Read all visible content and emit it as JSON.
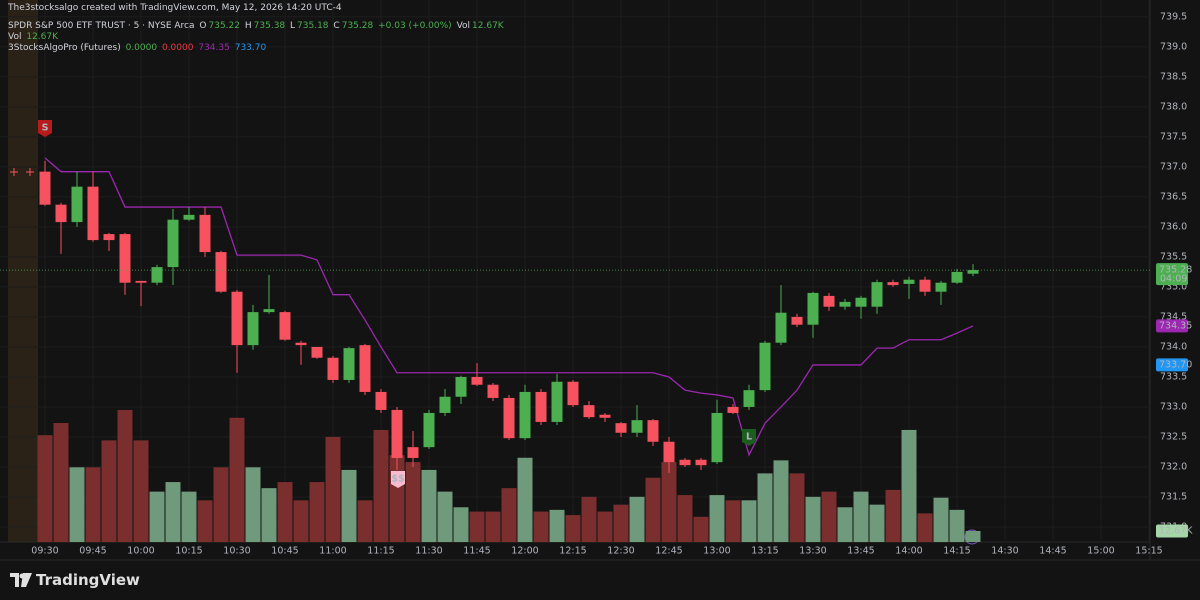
{
  "chart_data": {
    "type": "candlestick",
    "credit": "The3stocksalgo created with TradingView.com, May 12, 2026 14:20 UTC-4",
    "title": "SPDR S&P 500 ETF TRUST · 5 · NYSE Arca",
    "ohlc_keys": [
      "O",
      "H",
      "L",
      "C"
    ],
    "change_label": "+0.03 (+0.00%)",
    "countdown": "04:09",
    "brand": "TradingView",
    "categories": [
      "09:30",
      null,
      null,
      "09:45",
      null,
      null,
      "10:00",
      null,
      null,
      "10:15",
      null,
      null,
      "10:30",
      null,
      null,
      "10:45",
      null,
      null,
      "11:00",
      null,
      null,
      "11:15",
      null,
      null,
      "11:30",
      null,
      null,
      "11:45",
      null,
      null,
      "12:00",
      null,
      null,
      "12:15",
      null,
      null,
      "12:30",
      null,
      null,
      "12:45",
      null,
      null,
      "13:00",
      null,
      null,
      "13:15",
      null,
      null,
      "13:30",
      null,
      null,
      "13:45",
      null,
      null,
      "14:00",
      null,
      null,
      "14:15",
      null,
      null,
      "14:30",
      null,
      null,
      "14:45",
      null,
      null,
      "15:00",
      null,
      null,
      "15:15"
    ],
    "open": [
      736.92,
      736.37,
      736.08,
      736.67,
      735.88,
      735.88,
      735.1,
      735.07,
      735.33,
      736.12,
      736.2,
      735.58,
      734.92,
      734.03,
      734.58,
      734.58,
      734.07,
      734.0,
      733.82,
      733.45,
      734.03,
      733.25,
      732.95,
      732.33,
      732.33,
      732.9,
      733.17,
      733.5,
      733.37,
      733.15,
      732.48,
      733.25,
      732.75,
      733.42,
      733.03,
      732.87,
      732.73,
      732.57,
      732.78,
      732.42,
      732.12,
      732.12,
      732.08,
      733.0,
      733.0,
      733.28,
      734.07,
      734.5,
      734.37,
      734.85,
      734.67,
      734.67,
      734.67,
      735.08,
      735.05,
      735.12,
      734.92,
      735.07,
      735.22,
      null,
      null,
      null,
      null,
      null,
      null,
      null,
      null,
      null,
      null,
      null
    ],
    "high": [
      737.1,
      736.4,
      736.92,
      736.92,
      735.9,
      735.9,
      735.1,
      735.37,
      736.3,
      736.33,
      736.33,
      735.6,
      734.95,
      734.7,
      735.2,
      734.6,
      734.1,
      734.0,
      733.85,
      734.0,
      734.05,
      733.3,
      733.0,
      732.6,
      732.95,
      733.3,
      733.52,
      733.73,
      733.4,
      733.2,
      733.37,
      733.3,
      733.55,
      733.45,
      733.1,
      732.9,
      732.75,
      733.03,
      732.8,
      732.5,
      732.15,
      732.15,
      733.12,
      733.05,
      733.37,
      734.1,
      735.03,
      734.55,
      734.92,
      734.9,
      734.8,
      734.85,
      735.12,
      735.12,
      735.17,
      735.17,
      735.1,
      735.3,
      735.38,
      null,
      null,
      null,
      null,
      null,
      null,
      null,
      null,
      null,
      null,
      null
    ],
    "low": [
      736.35,
      735.55,
      736.0,
      735.75,
      735.6,
      734.87,
      734.68,
      735.03,
      735.03,
      736.1,
      735.5,
      734.9,
      733.57,
      733.95,
      734.55,
      734.1,
      733.7,
      733.8,
      733.4,
      733.4,
      733.2,
      732.9,
      731.95,
      732.0,
      732.3,
      732.85,
      733.05,
      733.35,
      733.1,
      732.45,
      732.45,
      732.7,
      732.7,
      733.0,
      732.8,
      732.75,
      732.5,
      732.5,
      732.35,
      731.9,
      732.0,
      731.95,
      732.05,
      732.88,
      732.95,
      733.25,
      734.03,
      734.33,
      734.15,
      734.6,
      734.62,
      734.47,
      734.55,
      735.0,
      734.8,
      734.85,
      734.7,
      735.05,
      735.18,
      null,
      null,
      null,
      null,
      null,
      null,
      null,
      null,
      null,
      null,
      null
    ],
    "close": [
      736.37,
      736.08,
      736.67,
      735.78,
      735.78,
      735.07,
      735.07,
      735.33,
      736.12,
      736.2,
      735.58,
      734.92,
      734.03,
      734.58,
      734.63,
      734.12,
      734.03,
      733.82,
      733.45,
      733.98,
      733.25,
      732.95,
      732.15,
      732.15,
      732.9,
      733.17,
      733.5,
      733.37,
      733.15,
      732.48,
      733.25,
      732.75,
      733.42,
      733.03,
      732.83,
      732.82,
      732.57,
      732.78,
      732.42,
      732.08,
      732.03,
      732.03,
      732.9,
      732.9,
      733.28,
      734.07,
      734.57,
      734.37,
      734.9,
      734.67,
      734.75,
      734.82,
      735.08,
      735.03,
      735.12,
      734.92,
      735.07,
      735.25,
      735.28,
      null,
      null,
      null,
      null,
      null,
      null,
      null,
      null,
      null,
      null,
      null
    ],
    "colors": {
      "up": "#4caf50",
      "down": "#f7525f"
    },
    "volume": {
      "name": "Vol",
      "last_label": "12.67K",
      "ylim": [
        0,
        624
      ],
      "up_color": "#6f9a7c",
      "down_color": "#7a2e2e",
      "values": [
        123,
        137,
        86,
        86,
        117,
        152,
        117,
        58,
        69,
        58,
        48,
        86,
        143,
        86,
        62,
        69,
        48,
        69,
        121,
        83,
        48,
        129,
        100,
        92,
        83,
        58,
        40,
        35,
        35,
        62,
        97,
        35,
        37,
        31,
        52,
        35,
        43,
        52,
        74,
        92,
        54,
        29,
        54,
        48,
        48,
        79,
        94,
        79,
        52,
        58,
        40,
        58,
        43,
        60,
        129,
        33,
        51,
        37,
        12.67,
        null,
        null,
        null,
        null,
        null,
        null,
        null,
        null,
        null,
        null,
        null
      ]
    },
    "indicator": {
      "name": "3StocksAlgoPro (Futures)",
      "readouts": [
        "0.0000",
        "0.0000"
      ],
      "readout_colors": [
        "#4caf50",
        "#f23645"
      ],
      "color": "#9c27b0",
      "values": [
        737.15,
        736.92,
        736.92,
        736.92,
        736.92,
        736.33,
        736.33,
        736.33,
        736.33,
        736.33,
        736.33,
        736.33,
        735.53,
        735.53,
        735.53,
        735.53,
        735.53,
        735.45,
        734.87,
        734.87,
        734.45,
        734.0,
        733.57,
        733.57,
        733.57,
        733.57,
        733.57,
        733.57,
        733.57,
        733.57,
        733.57,
        733.57,
        733.57,
        733.57,
        733.57,
        733.57,
        733.57,
        733.57,
        733.57,
        733.5,
        733.28,
        733.23,
        733.2,
        733.15,
        732.2,
        732.73,
        733.0,
        733.28,
        733.7,
        733.7,
        733.7,
        733.7,
        733.98,
        733.98,
        734.12,
        734.12,
        734.12,
        734.23,
        734.35,
        null,
        null,
        null,
        null,
        null,
        null,
        null,
        null,
        null,
        null,
        null
      ],
      "second_value": {
        "value": 733.7,
        "label": "733.70"
      },
      "second_color": "#2196f3"
    },
    "markers": [
      "S",
      "L",
      "$$"
    ],
    "ylim": [
      730.7,
      739.78
    ],
    "yticks": [
      {
        "value": 731,
        "label": "731.0"
      },
      731.5,
      {
        "value": 732,
        "label": "732.0"
      },
      732.5,
      {
        "value": 733,
        "label": "733.0"
      },
      733.5,
      {
        "value": 734,
        "label": "734.0"
      },
      734.5,
      {
        "value": 735,
        "label": "735.0"
      },
      735.5,
      {
        "value": 736,
        "label": "736.0"
      },
      736.5,
      {
        "value": 737,
        "label": "737.0"
      },
      737.5,
      {
        "value": 738,
        "label": "738.0"
      },
      738.5,
      {
        "value": 739,
        "label": "739.0"
      },
      739.5
    ],
    "grid": true
  }
}
